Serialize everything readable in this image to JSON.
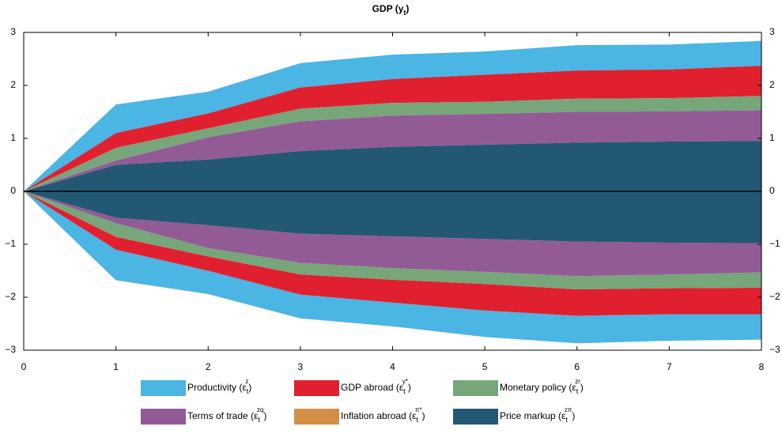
{
  "chart_data": {
    "type": "stacked_area",
    "title": [
      "GDP (y",
      "t",
      ")"
    ],
    "x": [
      0,
      1,
      2,
      3,
      4,
      5,
      6,
      7,
      8
    ],
    "xlim": [
      0,
      8
    ],
    "xticks": [
      0,
      1,
      2,
      3,
      4,
      5,
      6,
      7,
      8
    ],
    "ylim": [
      -3,
      3
    ],
    "yticks": [
      {
        "value": -3,
        "label": "−3"
      },
      {
        "value": -2,
        "label": "−2"
      },
      {
        "value": -1,
        "label": "−1"
      },
      0,
      1,
      2,
      3
    ],
    "series": [
      {
        "name": [
          "Productivity (ε",
          "t",
          "z",
          ")"
        ],
        "color": "#4bb5e3",
        "values": [
          0,
          0.54,
          0.41,
          0.46,
          0.46,
          0.44,
          0.48,
          0.47,
          0.47
        ],
        "negative_values": [
          0,
          -0.58,
          -0.44,
          -0.45,
          -0.45,
          -0.5,
          -0.52,
          -0.5,
          -0.48
        ]
      },
      {
        "name": [
          "GDP abroad (ε",
          "t",
          "y*",
          ")"
        ],
        "color": "#e0202f",
        "values": [
          0,
          0.28,
          0.28,
          0.4,
          0.45,
          0.51,
          0.53,
          0.54,
          0.57
        ],
        "negative_values": [
          0,
          -0.24,
          -0.27,
          -0.38,
          -0.43,
          -0.5,
          -0.5,
          -0.49,
          -0.5
        ]
      },
      {
        "name": [
          "Monetary policy (ε",
          "t",
          "zr",
          ")"
        ],
        "color": "#76a67a",
        "values": [
          0,
          0.24,
          0.17,
          0.24,
          0.24,
          0.23,
          0.25,
          0.25,
          0.27
        ],
        "negative_values": [
          0,
          -0.26,
          -0.16,
          -0.22,
          -0.22,
          -0.23,
          -0.25,
          -0.26,
          -0.29
        ]
      },
      {
        "name": [
          "Terms of trade (ε",
          "t",
          "zq",
          ")"
        ],
        "color": "#935b96",
        "values": [
          0,
          0.08,
          0.42,
          0.56,
          0.59,
          0.58,
          0.58,
          0.57,
          0.58
        ],
        "negative_values": [
          0,
          -0.1,
          -0.43,
          -0.55,
          -0.6,
          -0.62,
          -0.65,
          -0.6,
          -0.55
        ]
      },
      {
        "name": [
          "Inflation abroad (ε",
          "t",
          "π*",
          ")"
        ],
        "color": "#d38f45",
        "values": [
          0,
          0,
          0,
          0,
          0,
          0,
          0,
          0,
          0
        ],
        "negative_values": [
          0,
          0,
          0,
          0,
          0,
          0,
          0,
          0,
          0
        ]
      },
      {
        "name": [
          "Price markup (ε",
          "t",
          "zπ",
          ")"
        ],
        "color": "#235875",
        "values": [
          0,
          0.5,
          0.6,
          0.76,
          0.84,
          0.88,
          0.92,
          0.94,
          0.95
        ],
        "negative_values": [
          0,
          -0.5,
          -0.64,
          -0.8,
          -0.85,
          -0.9,
          -0.95,
          -0.97,
          -0.98
        ]
      }
    ]
  }
}
